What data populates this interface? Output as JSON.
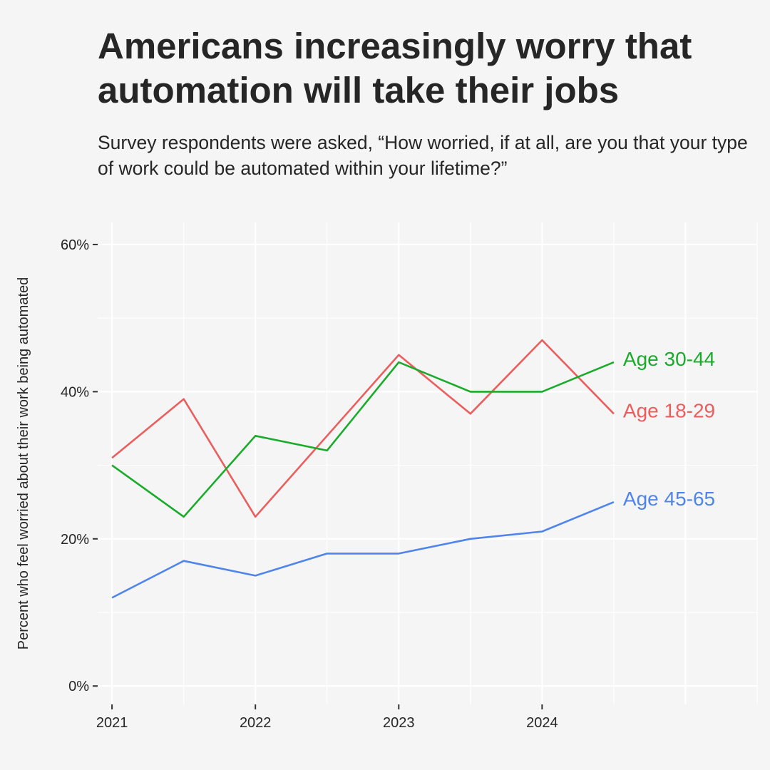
{
  "header": {
    "title": "Americans increasingly worry that automation will take their jobs",
    "subtitle": "Survey respondents were asked, “How worried, if at all, are you that your type of work could be automated within your lifetime?”"
  },
  "chart_data": {
    "type": "line",
    "title": "Americans increasingly worry that automation will take their jobs",
    "subtitle": "Survey respondents were asked, “How worried, if at all, are you that your type of work could be automated within your lifetime?”",
    "xlabel": "",
    "ylabel": "Percent who feel worried about their work being automated",
    "x": [
      2021.0,
      2021.5,
      2022.0,
      2022.5,
      2023.0,
      2023.5,
      2024.0,
      2024.5
    ],
    "xlim": [
      2020.9,
      2025.5
    ],
    "ylim": [
      -2.5,
      63
    ],
    "x_ticks": [
      2021,
      2022,
      2023,
      2024
    ],
    "x_tick_labels": [
      "2021",
      "2022",
      "2023",
      "2024"
    ],
    "y_ticks": [
      0,
      20,
      40,
      60
    ],
    "y_tick_labels": [
      "0%",
      "20%",
      "40%",
      "60%"
    ],
    "grid": true,
    "legend": "direct labels at line ends",
    "series": [
      {
        "name": "Age 18-29",
        "color": "#eb5e5e",
        "values": [
          31,
          39,
          23,
          34,
          45,
          37,
          47,
          37
        ]
      },
      {
        "name": "Age 30-44",
        "color": "#1aab2a",
        "values": [
          30,
          23,
          34,
          32,
          44,
          40,
          40,
          44
        ]
      },
      {
        "name": "Age 45-65",
        "color": "#4f85eb",
        "values": [
          12,
          17,
          15,
          18,
          18,
          20,
          21,
          25
        ]
      }
    ]
  }
}
